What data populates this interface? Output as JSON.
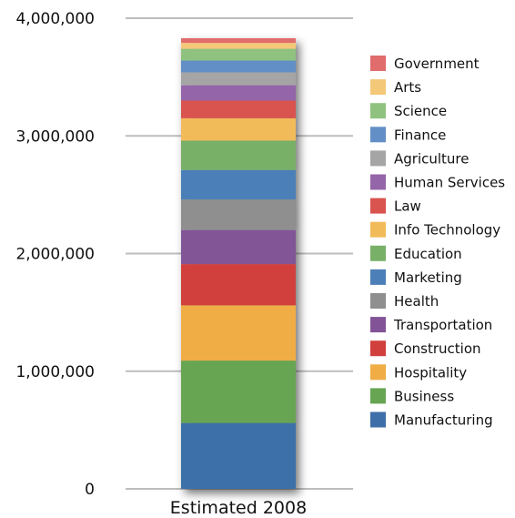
{
  "chart_data": {
    "type": "bar",
    "stacked": true,
    "categories": [
      "Estimated 2008"
    ],
    "ylim": [
      0,
      4000000
    ],
    "yticks": [
      0,
      1000000,
      2000000,
      3000000,
      4000000
    ],
    "ytick_labels": [
      "0",
      "1,000,000",
      "2,000,000",
      "3,000,000",
      "4,000,000"
    ],
    "grid": true,
    "legend_position": "right",
    "series": [
      {
        "name": "Manufacturing",
        "values": [
          560000
        ],
        "color": "#3e6fa8"
      },
      {
        "name": "Business",
        "values": [
          530000
        ],
        "color": "#67a552"
      },
      {
        "name": "Hospitality",
        "values": [
          470000
        ],
        "color": "#f0ad45"
      },
      {
        "name": "Construction",
        "values": [
          350000
        ],
        "color": "#d1403c"
      },
      {
        "name": "Transportation",
        "values": [
          290000
        ],
        "color": "#825497"
      },
      {
        "name": "Health",
        "values": [
          260000
        ],
        "color": "#8f8f8f"
      },
      {
        "name": "Marketing",
        "values": [
          250000
        ],
        "color": "#4c7fb8"
      },
      {
        "name": "Education",
        "values": [
          250000
        ],
        "color": "#78b068"
      },
      {
        "name": "Info Technology",
        "values": [
          190000
        ],
        "color": "#f2bb5a"
      },
      {
        "name": "Law",
        "values": [
          150000
        ],
        "color": "#d9534f"
      },
      {
        "name": "Human Services",
        "values": [
          130000
        ],
        "color": "#9465a8"
      },
      {
        "name": "Agriculture",
        "values": [
          110000
        ],
        "color": "#a5a5a5"
      },
      {
        "name": "Finance",
        "values": [
          100000
        ],
        "color": "#628fc6"
      },
      {
        "name": "Science",
        "values": [
          100000
        ],
        "color": "#8fc27f"
      },
      {
        "name": "Arts",
        "values": [
          50000
        ],
        "color": "#f4c879"
      },
      {
        "name": "Government",
        "values": [
          40000
        ],
        "color": "#e06c6c"
      }
    ]
  }
}
